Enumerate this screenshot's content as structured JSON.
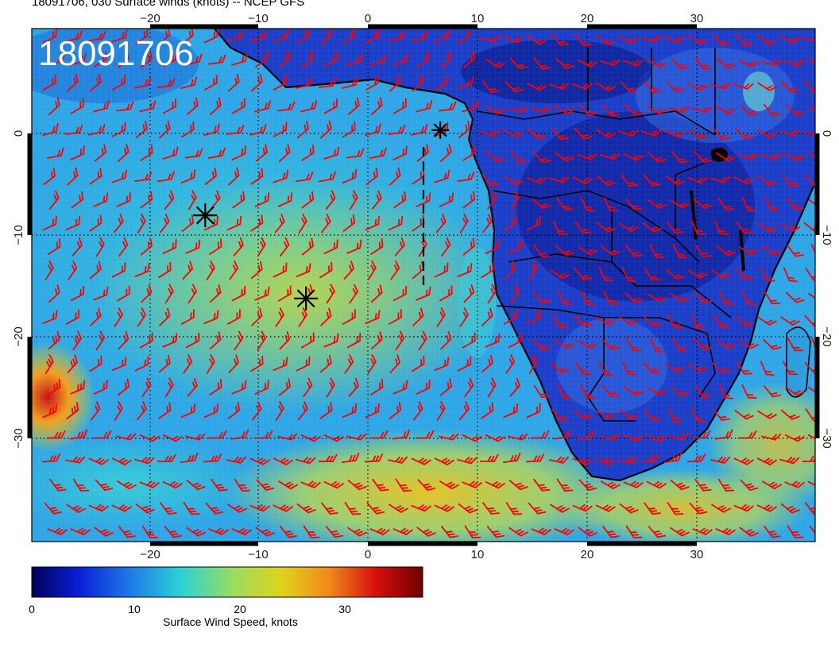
{
  "title": "18091706, 030 Surface winds (knots) -- NCEP GFS",
  "stamp": "18091706",
  "axes": {
    "lon_ticks_top": [
      "−20",
      "−10",
      "0",
      "10",
      "20",
      "30"
    ],
    "lon_ticks_bottom": [
      "−20",
      "−10",
      "0",
      "10",
      "20",
      "30"
    ],
    "lat_ticks_left": [
      "0",
      "−10",
      "−20",
      "−30"
    ],
    "lat_ticks_right": [
      "0",
      "−10",
      "−20",
      "−30"
    ],
    "lon_range": [
      -30,
      40
    ],
    "lat_range": [
      -40,
      10
    ]
  },
  "colorbar": {
    "label": "Surface Wind Speed, knots",
    "ticks": [
      "0",
      "10",
      "20",
      "30"
    ],
    "range": [
      0,
      38
    ],
    "colors": [
      "#00005a",
      "#0a1fd8",
      "#1f7fe6",
      "#2ad2d6",
      "#9ddc5a",
      "#e0d21c",
      "#f08a1a",
      "#d4100e",
      "#6e0000"
    ]
  },
  "markers": [
    {
      "type": "asterisk",
      "lon": -14.5,
      "lat": -8.2
    },
    {
      "type": "asterisk",
      "lon": -5.5,
      "lat": -16.3
    },
    {
      "type": "asterisk",
      "lon": 6.5,
      "lat": 0.1
    }
  ],
  "track_line": {
    "style": "dashed",
    "points": [
      [
        5,
        -15
      ],
      [
        5,
        -1.5
      ]
    ]
  },
  "barb_color": "#ff0000",
  "coastline_color": "#000000"
}
